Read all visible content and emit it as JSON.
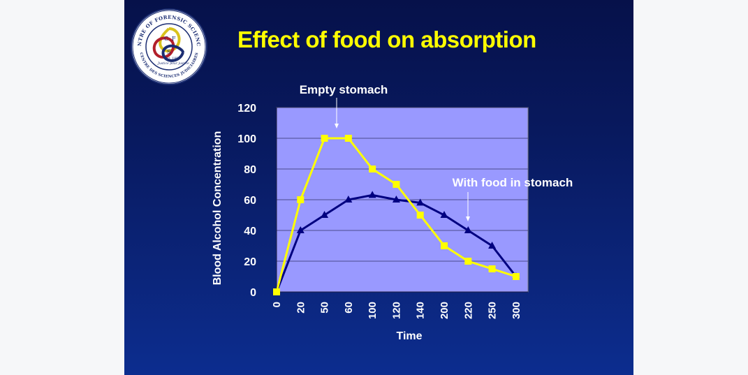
{
  "slide": {
    "title": "Effect of food on absorption",
    "logo": {
      "ring_text_top": "CENTRE OF FORENSIC SCIENCES",
      "ring_text_bottom": "CENTRE DES SCIENCES JUDICIAIRES",
      "motto": "Justice pour justice",
      "est": "Est. 1951",
      "letters": [
        "C",
        "F",
        "S"
      ]
    }
  },
  "colors": {
    "background_top": "#06114a",
    "background_bottom": "#0c2d8f",
    "title": "#ffff00",
    "plot_area": "#9999ff",
    "empty_series": "#ffff00",
    "food_series": "#000080"
  },
  "chart_data": {
    "type": "line",
    "title": "",
    "xlabel": "Time",
    "ylabel": "Blood Alcohol Concentration",
    "categories": [
      "0",
      "20",
      "50",
      "60",
      "100",
      "120",
      "140",
      "200",
      "220",
      "250",
      "300"
    ],
    "ylim": [
      0,
      120
    ],
    "yticks": [
      "0",
      "20",
      "40",
      "60",
      "80",
      "100",
      "120"
    ],
    "grid": true,
    "series": [
      {
        "name": "Empty stomach",
        "marker": "square",
        "values": [
          0,
          60,
          100,
          100,
          80,
          70,
          50,
          30,
          20,
          15,
          10
        ]
      },
      {
        "name": "With food in stomach",
        "marker": "triangle",
        "values": [
          0,
          40,
          50,
          60,
          63,
          60,
          58,
          50,
          40,
          30,
          10
        ]
      }
    ],
    "annotations": [
      {
        "text": "Empty stomach",
        "series": 0
      },
      {
        "text": "With food in stomach",
        "series": 1
      }
    ]
  }
}
